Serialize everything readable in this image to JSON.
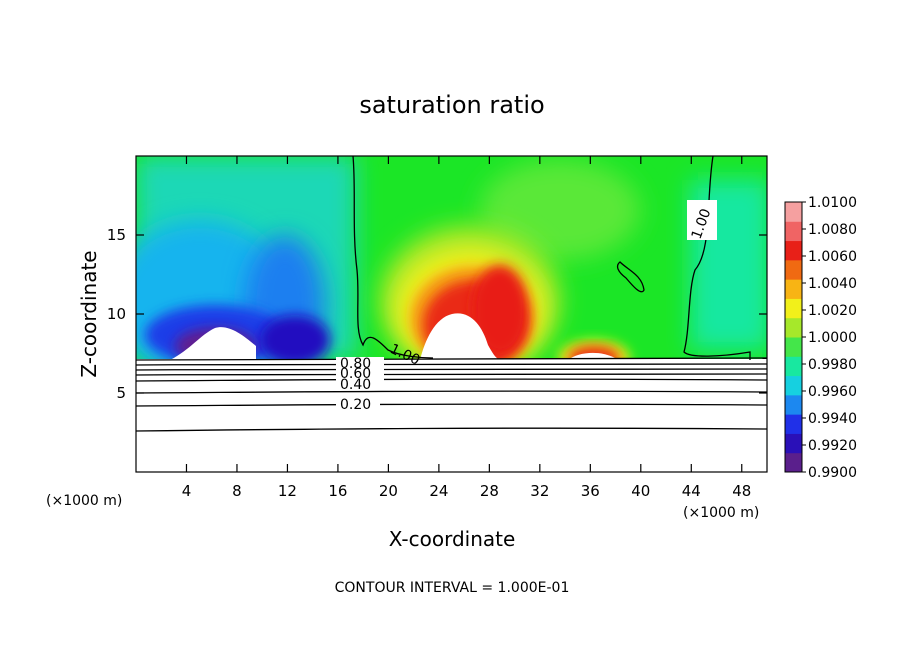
{
  "chart_data": {
    "type": "heatmap",
    "title": "saturation ratio",
    "xlabel": "X-coordinate",
    "ylabel": "Z-coordinate",
    "x_unit": "(×1000 m)",
    "x_unit_right": "(×1000 m)",
    "footer": "CONTOUR INTERVAL = 1.000E-01",
    "xlim": [
      0,
      50
    ],
    "ylim": [
      0,
      20
    ],
    "x_ticks": [
      4,
      8,
      12,
      16,
      20,
      24,
      28,
      32,
      36,
      40,
      44,
      48
    ],
    "x_tick_labels": [
      "4",
      "8",
      "12",
      "16",
      "20",
      "24",
      "28",
      "32",
      "36",
      "40",
      "44",
      "48"
    ],
    "y_ticks": [
      5,
      10,
      15
    ],
    "y_tick_labels": [
      "5",
      "10",
      "15"
    ],
    "colorbar": {
      "min": 0.99,
      "max": 1.01,
      "labels": [
        "1.0100",
        "1.0080",
        "1.0060",
        "1.0040",
        "1.0020",
        "1.0000",
        "0.9980",
        "0.9960",
        "0.9940",
        "0.9920",
        "0.9900"
      ],
      "colors": [
        "#5a1f8c",
        "#2a10b8",
        "#2030e8",
        "#1c88f0",
        "#16d0e0",
        "#18e8a0",
        "#44e64a",
        "#a6e82a",
        "#f2f01a",
        "#f8b414",
        "#f06a12",
        "#e82018",
        "#f06464",
        "#f5a0a0"
      ]
    },
    "contour_labels": [
      "0.80",
      "0.60",
      "0.40",
      "0.20",
      "1.00",
      "1.00"
    ],
    "lower_contour_levels": [
      0.8,
      0.6,
      0.4,
      0.2
    ],
    "features": [
      {
        "kind": "dry_region",
        "x_center": 9,
        "z_top": 9.3,
        "min_value": 0.99
      },
      {
        "kind": "supersaturated_plume",
        "x_center": 28,
        "z_top": 14.8,
        "max_value": 1.0066
      },
      {
        "kind": "supersaturated_plume",
        "x_center": 36,
        "z_top": 8.6,
        "max_value": 1.0063
      }
    ]
  }
}
